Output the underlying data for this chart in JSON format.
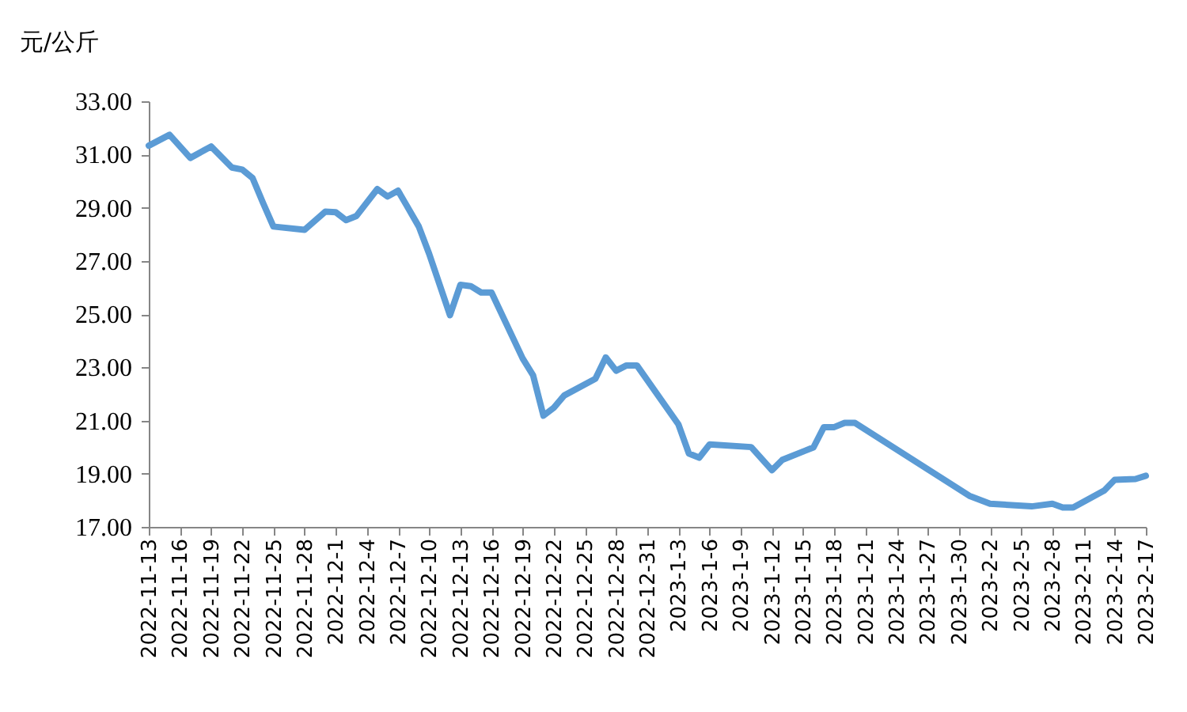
{
  "chart_data": {
    "type": "line",
    "ylabel": "元/公斤",
    "x": [
      "2022-11-13",
      "2022-11-15",
      "2022-11-17",
      "2022-11-19",
      "2022-11-21",
      "2022-11-22",
      "2022-11-23",
      "2022-11-24",
      "2022-11-25",
      "2022-11-28",
      "2022-11-30",
      "2022-12-01",
      "2022-12-02",
      "2022-12-03",
      "2022-12-05",
      "2022-12-06",
      "2022-12-07",
      "2022-12-09",
      "2022-12-10",
      "2022-12-12",
      "2022-12-13",
      "2022-12-14",
      "2022-12-15",
      "2022-12-16",
      "2022-12-19",
      "2022-12-20",
      "2022-12-21",
      "2022-12-22",
      "2022-12-23",
      "2022-12-26",
      "2022-12-27",
      "2022-12-28",
      "2022-12-29",
      "2022-12-30",
      "2023-01-03",
      "2023-01-04",
      "2023-01-05",
      "2023-01-06",
      "2023-01-10",
      "2023-01-12",
      "2023-01-13",
      "2023-01-16",
      "2023-01-17",
      "2023-01-18",
      "2023-01-19",
      "2023-01-20",
      "2023-01-31",
      "2023-02-02",
      "2023-02-06",
      "2023-02-08",
      "2023-02-09",
      "2023-02-10",
      "2023-02-13",
      "2023-02-14",
      "2023-02-16",
      "2023-02-17"
    ],
    "series": [
      {
        "color": "#5b9bd5",
        "values": [
          31.33,
          31.74,
          30.87,
          31.3,
          30.51,
          30.43,
          30.11,
          29.18,
          28.29,
          28.17,
          28.85,
          28.83,
          28.53,
          28.69,
          29.7,
          29.42,
          29.64,
          28.29,
          27.26,
          24.96,
          26.1,
          26.05,
          25.81,
          25.81,
          23.33,
          22.7,
          21.18,
          21.48,
          21.94,
          22.57,
          23.37,
          22.87,
          23.07,
          23.07,
          20.85,
          19.76,
          19.6,
          20.1,
          20.0,
          19.13,
          19.52,
          19.99,
          20.75,
          20.75,
          20.91,
          20.91,
          18.17,
          17.87,
          17.77,
          17.87,
          17.73,
          17.73,
          18.37,
          18.77,
          18.8,
          18.92
        ]
      }
    ],
    "xlim": [
      "2022-11-13",
      "2023-02-17"
    ],
    "xticks": [
      {
        "value": "2022-11-13",
        "label": "2022-11-13"
      },
      {
        "value": "2022-11-16",
        "label": "2022-11-16"
      },
      {
        "value": "2022-11-19",
        "label": "2022-11-19"
      },
      {
        "value": "2022-11-22",
        "label": "2022-11-22"
      },
      {
        "value": "2022-11-25",
        "label": "2022-11-25"
      },
      {
        "value": "2022-11-28",
        "label": "2022-11-28"
      },
      {
        "value": "2022-12-01",
        "label": "2022-12-1"
      },
      {
        "value": "2022-12-04",
        "label": "2022-12-4"
      },
      {
        "value": "2022-12-07",
        "label": "2022-12-7"
      },
      {
        "value": "2022-12-10",
        "label": "2022-12-10"
      },
      {
        "value": "2022-12-13",
        "label": "2022-12-13"
      },
      {
        "value": "2022-12-16",
        "label": "2022-12-16"
      },
      {
        "value": "2022-12-19",
        "label": "2022-12-19"
      },
      {
        "value": "2022-12-22",
        "label": "2022-12-22"
      },
      {
        "value": "2022-12-25",
        "label": "2022-12-25"
      },
      {
        "value": "2022-12-28",
        "label": "2022-12-28"
      },
      {
        "value": "2022-12-31",
        "label": "2022-12-31"
      },
      {
        "value": "2023-01-03",
        "label": "2023-1-3"
      },
      {
        "value": "2023-01-06",
        "label": "2023-1-6"
      },
      {
        "value": "2023-01-09",
        "label": "2023-1-9"
      },
      {
        "value": "2023-01-12",
        "label": "2023-1-12"
      },
      {
        "value": "2023-01-15",
        "label": "2023-1-15"
      },
      {
        "value": "2023-01-18",
        "label": "2023-1-18"
      },
      {
        "value": "2023-01-21",
        "label": "2023-1-21"
      },
      {
        "value": "2023-01-24",
        "label": "2023-1-24"
      },
      {
        "value": "2023-01-27",
        "label": "2023-1-27"
      },
      {
        "value": "2023-01-30",
        "label": "2023-1-30"
      },
      {
        "value": "2023-02-02",
        "label": "2023-2-2"
      },
      {
        "value": "2023-02-05",
        "label": "2023-2-5"
      },
      {
        "value": "2023-02-08",
        "label": "2023-2-8"
      },
      {
        "value": "2023-02-11",
        "label": "2023-2-11"
      },
      {
        "value": "2023-02-14",
        "label": "2023-2-14"
      },
      {
        "value": "2023-02-17",
        "label": "2023-2-17"
      }
    ],
    "ylim": [
      17,
      33
    ],
    "yticks": [
      {
        "value": 17,
        "label": "17.00"
      },
      {
        "value": 19,
        "label": "19.00"
      },
      {
        "value": 21,
        "label": "21.00"
      },
      {
        "value": 23,
        "label": "23.00"
      },
      {
        "value": 25,
        "label": "25.00"
      },
      {
        "value": 27,
        "label": "27.00"
      },
      {
        "value": 29,
        "label": "29.00"
      },
      {
        "value": 31,
        "label": "31.00"
      },
      {
        "value": 33,
        "label": "33.00"
      }
    ],
    "grid": false,
    "marker": "none",
    "line_style": "solid"
  }
}
